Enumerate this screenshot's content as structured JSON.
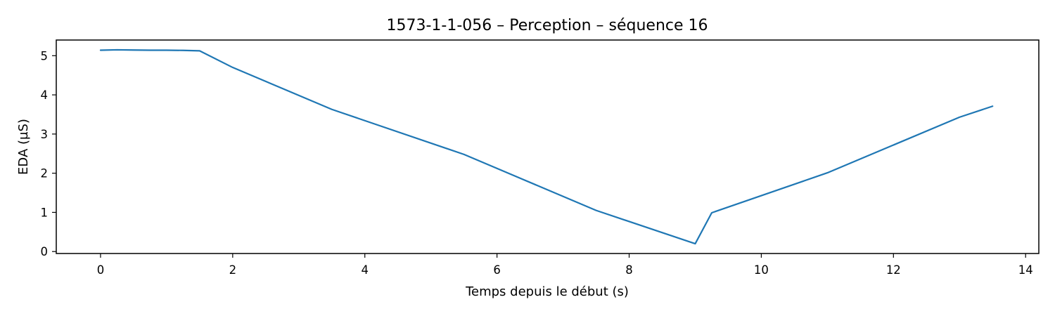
{
  "chart_data": {
    "type": "line",
    "title": "1573-1-1-056 – Perception – séquence 16",
    "xlabel": "Temps depuis le début (s)",
    "ylabel": "EDA (µS)",
    "xlim": [
      -0.67,
      14.2
    ],
    "ylim": [
      -0.05,
      5.4
    ],
    "xticks": [
      0,
      2,
      4,
      6,
      8,
      10,
      12,
      14
    ],
    "yticks": [
      0,
      1,
      2,
      3,
      4,
      5
    ],
    "grid": false,
    "series": [
      {
        "color": "#1f77b4",
        "x": [
          0,
          0.25,
          0.5,
          0.75,
          1.0,
          1.25,
          1.5,
          2.0,
          3.5,
          5.5,
          7.5,
          9.0,
          9.25,
          11.0,
          13.0,
          13.5
        ],
        "y": [
          5.14,
          5.15,
          5.145,
          5.14,
          5.14,
          5.135,
          5.125,
          4.7,
          3.63,
          2.48,
          1.05,
          0.2,
          0.99,
          2.01,
          3.43,
          3.71
        ]
      }
    ]
  }
}
